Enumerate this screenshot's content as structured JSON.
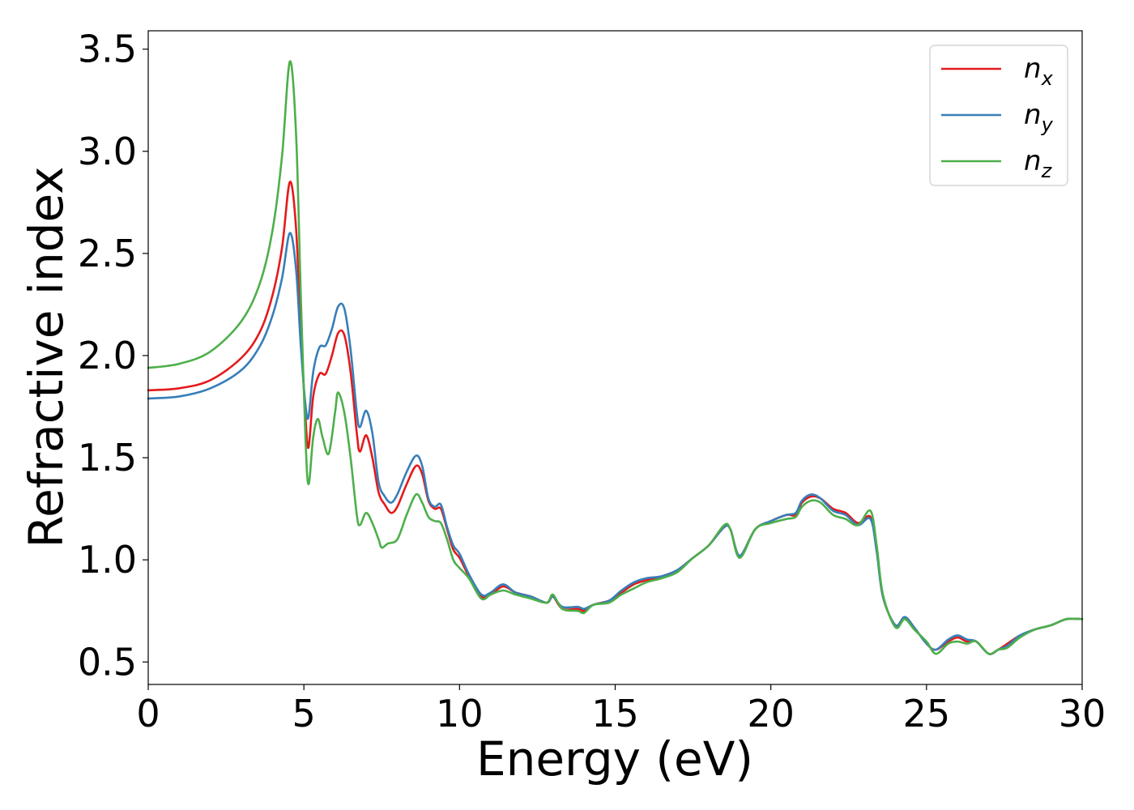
{
  "chart_data": {
    "type": "line",
    "xlabel": "Energy (eV)",
    "ylabel": "Refractive index",
    "xlim": [
      0,
      30
    ],
    "ylim": [
      0.39,
      3.59
    ],
    "xticks": [
      0,
      5,
      10,
      15,
      20,
      25,
      30
    ],
    "yticks": [
      0.5,
      1.0,
      1.5,
      2.0,
      2.5,
      3.0,
      3.5
    ],
    "xtick_labels": [
      "0",
      "5",
      "10",
      "15",
      "20",
      "25",
      "30"
    ],
    "ytick_labels": [
      "0.5",
      "1.0",
      "1.5",
      "2.0",
      "2.5",
      "3.0",
      "3.5"
    ],
    "grid": false,
    "legend_position": "top-right",
    "series": [
      {
        "name": "n_x",
        "label_base": "n",
        "label_sub": "x",
        "color": "#e41a1c",
        "points": [
          [
            0,
            1.83
          ],
          [
            1,
            1.84
          ],
          [
            2,
            1.88
          ],
          [
            3,
            1.99
          ],
          [
            3.6,
            2.12
          ],
          [
            4,
            2.3
          ],
          [
            4.3,
            2.53
          ],
          [
            4.55,
            2.85
          ],
          [
            4.75,
            2.62
          ],
          [
            4.9,
            2.1
          ],
          [
            5.05,
            1.7
          ],
          [
            5.15,
            1.55
          ],
          [
            5.3,
            1.8
          ],
          [
            5.5,
            1.91
          ],
          [
            5.7,
            1.91
          ],
          [
            5.9,
            2.0
          ],
          [
            6.1,
            2.11
          ],
          [
            6.3,
            2.1
          ],
          [
            6.5,
            1.92
          ],
          [
            6.7,
            1.62
          ],
          [
            6.8,
            1.53
          ],
          [
            7.0,
            1.61
          ],
          [
            7.2,
            1.5
          ],
          [
            7.4,
            1.33
          ],
          [
            7.6,
            1.27
          ],
          [
            7.8,
            1.23
          ],
          [
            8.0,
            1.26
          ],
          [
            8.3,
            1.37
          ],
          [
            8.6,
            1.46
          ],
          [
            8.8,
            1.42
          ],
          [
            9.0,
            1.29
          ],
          [
            9.2,
            1.25
          ],
          [
            9.4,
            1.25
          ],
          [
            9.6,
            1.15
          ],
          [
            9.8,
            1.05
          ],
          [
            10.0,
            1.01
          ],
          [
            10.3,
            0.92
          ],
          [
            10.7,
            0.82
          ],
          [
            11.0,
            0.83
          ],
          [
            11.4,
            0.87
          ],
          [
            11.8,
            0.84
          ],
          [
            12.3,
            0.82
          ],
          [
            12.8,
            0.79
          ],
          [
            13.0,
            0.82
          ],
          [
            13.3,
            0.76
          ],
          [
            13.8,
            0.76
          ],
          [
            14.0,
            0.75
          ],
          [
            14.3,
            0.78
          ],
          [
            14.8,
            0.8
          ],
          [
            15.2,
            0.84
          ],
          [
            15.6,
            0.88
          ],
          [
            16.0,
            0.9
          ],
          [
            16.5,
            0.92
          ],
          [
            17.0,
            0.95
          ],
          [
            17.5,
            1.01
          ],
          [
            18.0,
            1.07
          ],
          [
            18.5,
            1.16
          ],
          [
            18.7,
            1.15
          ],
          [
            19.0,
            1.02
          ],
          [
            19.5,
            1.15
          ],
          [
            20.0,
            1.19
          ],
          [
            20.5,
            1.22
          ],
          [
            20.8,
            1.22
          ],
          [
            21.0,
            1.28
          ],
          [
            21.3,
            1.31
          ],
          [
            21.6,
            1.3
          ],
          [
            22.0,
            1.25
          ],
          [
            22.4,
            1.23
          ],
          [
            22.8,
            1.18
          ],
          [
            23.2,
            1.21
          ],
          [
            23.4,
            1.05
          ],
          [
            23.6,
            0.82
          ],
          [
            24.0,
            0.68
          ],
          [
            24.3,
            0.72
          ],
          [
            24.6,
            0.67
          ],
          [
            25.0,
            0.59
          ],
          [
            25.3,
            0.56
          ],
          [
            25.7,
            0.6
          ],
          [
            26.0,
            0.62
          ],
          [
            26.3,
            0.6
          ],
          [
            26.6,
            0.6
          ],
          [
            27.0,
            0.54
          ],
          [
            27.3,
            0.56
          ],
          [
            27.6,
            0.59
          ],
          [
            28.0,
            0.63
          ],
          [
            28.5,
            0.66
          ],
          [
            29.0,
            0.68
          ],
          [
            29.5,
            0.71
          ],
          [
            30,
            0.71
          ]
        ]
      },
      {
        "name": "n_y",
        "label_base": "n",
        "label_sub": "y",
        "color": "#377eb8",
        "points": [
          [
            0,
            1.79
          ],
          [
            1,
            1.8
          ],
          [
            2,
            1.84
          ],
          [
            3,
            1.93
          ],
          [
            3.6,
            2.05
          ],
          [
            4,
            2.2
          ],
          [
            4.3,
            2.38
          ],
          [
            4.55,
            2.6
          ],
          [
            4.75,
            2.42
          ],
          [
            4.9,
            2.05
          ],
          [
            5.05,
            1.76
          ],
          [
            5.15,
            1.7
          ],
          [
            5.3,
            1.92
          ],
          [
            5.5,
            2.04
          ],
          [
            5.7,
            2.05
          ],
          [
            5.9,
            2.13
          ],
          [
            6.1,
            2.24
          ],
          [
            6.3,
            2.23
          ],
          [
            6.5,
            2.03
          ],
          [
            6.7,
            1.72
          ],
          [
            6.8,
            1.65
          ],
          [
            7.0,
            1.73
          ],
          [
            7.2,
            1.62
          ],
          [
            7.4,
            1.38
          ],
          [
            7.6,
            1.31
          ],
          [
            7.8,
            1.28
          ],
          [
            8.0,
            1.32
          ],
          [
            8.3,
            1.43
          ],
          [
            8.6,
            1.51
          ],
          [
            8.8,
            1.46
          ],
          [
            9.0,
            1.3
          ],
          [
            9.2,
            1.26
          ],
          [
            9.4,
            1.27
          ],
          [
            9.6,
            1.16
          ],
          [
            9.8,
            1.07
          ],
          [
            10.0,
            1.03
          ],
          [
            10.3,
            0.93
          ],
          [
            10.7,
            0.83
          ],
          [
            11.0,
            0.84
          ],
          [
            11.4,
            0.88
          ],
          [
            11.8,
            0.84
          ],
          [
            12.3,
            0.82
          ],
          [
            12.8,
            0.79
          ],
          [
            13.0,
            0.82
          ],
          [
            13.3,
            0.77
          ],
          [
            13.8,
            0.77
          ],
          [
            14.0,
            0.76
          ],
          [
            14.3,
            0.78
          ],
          [
            14.8,
            0.8
          ],
          [
            15.2,
            0.85
          ],
          [
            15.6,
            0.89
          ],
          [
            16.0,
            0.91
          ],
          [
            16.5,
            0.92
          ],
          [
            17.0,
            0.95
          ],
          [
            17.5,
            1.01
          ],
          [
            18.0,
            1.07
          ],
          [
            18.5,
            1.16
          ],
          [
            18.7,
            1.15
          ],
          [
            19.0,
            1.02
          ],
          [
            19.5,
            1.15
          ],
          [
            20.0,
            1.19
          ],
          [
            20.5,
            1.22
          ],
          [
            20.8,
            1.23
          ],
          [
            21.0,
            1.29
          ],
          [
            21.3,
            1.32
          ],
          [
            21.6,
            1.3
          ],
          [
            22.0,
            1.24
          ],
          [
            22.4,
            1.22
          ],
          [
            22.8,
            1.17
          ],
          [
            23.2,
            1.2
          ],
          [
            23.4,
            1.04
          ],
          [
            23.6,
            0.82
          ],
          [
            24.0,
            0.68
          ],
          [
            24.3,
            0.72
          ],
          [
            24.6,
            0.67
          ],
          [
            25.0,
            0.59
          ],
          [
            25.3,
            0.56
          ],
          [
            25.7,
            0.61
          ],
          [
            26.0,
            0.63
          ],
          [
            26.3,
            0.61
          ],
          [
            26.6,
            0.6
          ],
          [
            27.0,
            0.54
          ],
          [
            27.3,
            0.56
          ],
          [
            27.6,
            0.58
          ],
          [
            28.0,
            0.63
          ],
          [
            28.5,
            0.66
          ],
          [
            29.0,
            0.68
          ],
          [
            29.5,
            0.71
          ],
          [
            30,
            0.71
          ]
        ]
      },
      {
        "name": "n_z",
        "label_base": "n",
        "label_sub": "z",
        "color": "#4daf4a",
        "points": [
          [
            0,
            1.94
          ],
          [
            1,
            1.96
          ],
          [
            2,
            2.02
          ],
          [
            3,
            2.17
          ],
          [
            3.6,
            2.36
          ],
          [
            4,
            2.62
          ],
          [
            4.3,
            2.98
          ],
          [
            4.55,
            3.44
          ],
          [
            4.75,
            3.08
          ],
          [
            4.9,
            2.3
          ],
          [
            5.05,
            1.6
          ],
          [
            5.15,
            1.37
          ],
          [
            5.3,
            1.6
          ],
          [
            5.45,
            1.69
          ],
          [
            5.6,
            1.6
          ],
          [
            5.8,
            1.52
          ],
          [
            6.0,
            1.72
          ],
          [
            6.1,
            1.82
          ],
          [
            6.3,
            1.72
          ],
          [
            6.5,
            1.5
          ],
          [
            6.7,
            1.22
          ],
          [
            6.8,
            1.17
          ],
          [
            7.0,
            1.23
          ],
          [
            7.2,
            1.18
          ],
          [
            7.4,
            1.1
          ],
          [
            7.5,
            1.06
          ],
          [
            7.7,
            1.08
          ],
          [
            8.0,
            1.1
          ],
          [
            8.3,
            1.22
          ],
          [
            8.6,
            1.32
          ],
          [
            8.8,
            1.28
          ],
          [
            9.0,
            1.21
          ],
          [
            9.2,
            1.19
          ],
          [
            9.4,
            1.18
          ],
          [
            9.6,
            1.1
          ],
          [
            9.8,
            1.0
          ],
          [
            10.0,
            0.96
          ],
          [
            10.3,
            0.91
          ],
          [
            10.7,
            0.81
          ],
          [
            11.0,
            0.83
          ],
          [
            11.4,
            0.85
          ],
          [
            11.8,
            0.83
          ],
          [
            12.3,
            0.81
          ],
          [
            12.8,
            0.79
          ],
          [
            13.0,
            0.83
          ],
          [
            13.3,
            0.76
          ],
          [
            13.8,
            0.75
          ],
          [
            14.0,
            0.74
          ],
          [
            14.3,
            0.78
          ],
          [
            14.8,
            0.79
          ],
          [
            15.2,
            0.83
          ],
          [
            15.6,
            0.86
          ],
          [
            16.0,
            0.89
          ],
          [
            16.5,
            0.91
          ],
          [
            17.0,
            0.94
          ],
          [
            17.5,
            1.01
          ],
          [
            18.0,
            1.07
          ],
          [
            18.5,
            1.17
          ],
          [
            18.7,
            1.15
          ],
          [
            19.0,
            1.01
          ],
          [
            19.5,
            1.15
          ],
          [
            20.0,
            1.18
          ],
          [
            20.5,
            1.2
          ],
          [
            20.8,
            1.21
          ],
          [
            21.0,
            1.26
          ],
          [
            21.3,
            1.29
          ],
          [
            21.6,
            1.28
          ],
          [
            22.0,
            1.22
          ],
          [
            22.4,
            1.2
          ],
          [
            22.8,
            1.17
          ],
          [
            23.2,
            1.24
          ],
          [
            23.4,
            1.07
          ],
          [
            23.6,
            0.83
          ],
          [
            24.0,
            0.67
          ],
          [
            24.3,
            0.71
          ],
          [
            24.6,
            0.66
          ],
          [
            25.0,
            0.6
          ],
          [
            25.3,
            0.54
          ],
          [
            25.7,
            0.59
          ],
          [
            26.0,
            0.6
          ],
          [
            26.3,
            0.59
          ],
          [
            26.6,
            0.6
          ],
          [
            27.0,
            0.54
          ],
          [
            27.3,
            0.56
          ],
          [
            27.6,
            0.57
          ],
          [
            28.0,
            0.62
          ],
          [
            28.5,
            0.66
          ],
          [
            29.0,
            0.68
          ],
          [
            29.5,
            0.71
          ],
          [
            30,
            0.71
          ]
        ]
      }
    ]
  }
}
